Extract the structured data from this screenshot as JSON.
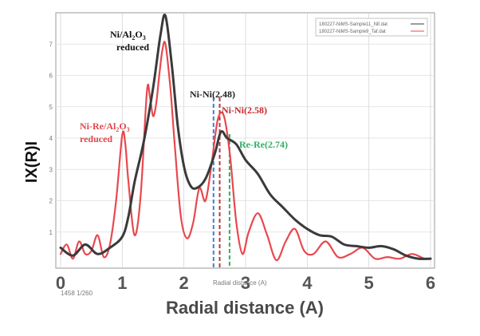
{
  "chart_data": {
    "type": "line",
    "xlabel": "Radial distance (A)",
    "xlabel_small": "Radial distance  (A)",
    "ylabel": "IX(R)I",
    "xlim": [
      0,
      6
    ],
    "ylim": [
      0,
      8.0
    ],
    "x_ticks": [
      "0",
      "1",
      "2",
      "3",
      "4",
      "5",
      "6"
    ],
    "y_ticks_small": [
      "1",
      "2",
      "3",
      "4",
      "5",
      "6",
      "7"
    ],
    "grid": true,
    "legend_position": "top-right",
    "legend": [
      "180227-NiMS-Sample11_Nif.dat",
      "180227-NiMS-Sample9_Taf.dat"
    ],
    "series": [
      {
        "name": "Ni/Al2O3 reduced",
        "color": "#3a3a3a",
        "x": [
          0.0,
          0.2,
          0.4,
          0.6,
          0.8,
          1.0,
          1.1,
          1.2,
          1.35,
          1.5,
          1.62,
          1.7,
          1.8,
          1.9,
          2.0,
          2.1,
          2.2,
          2.35,
          2.5,
          2.6,
          2.7,
          2.85,
          3.0,
          3.2,
          3.4,
          3.6,
          3.8,
          4.0,
          4.2,
          4.4,
          4.6,
          4.8,
          5.0,
          5.2,
          5.4,
          5.6,
          5.8,
          6.0
        ],
        "y": [
          0.5,
          0.25,
          0.6,
          0.3,
          0.5,
          0.85,
          1.5,
          2.6,
          3.9,
          5.6,
          7.3,
          7.9,
          6.4,
          4.4,
          3.1,
          2.5,
          2.4,
          2.7,
          3.5,
          4.2,
          4.0,
          3.8,
          3.3,
          2.85,
          2.2,
          1.8,
          1.4,
          1.1,
          0.9,
          0.85,
          0.6,
          0.55,
          0.5,
          0.55,
          0.45,
          0.25,
          0.15,
          0.15
        ]
      },
      {
        "name": "Ni-Re/Al2O3 reduced",
        "color": "#e8484e",
        "x": [
          0.0,
          0.1,
          0.2,
          0.3,
          0.4,
          0.5,
          0.6,
          0.7,
          0.8,
          0.9,
          1.0,
          1.05,
          1.1,
          1.2,
          1.3,
          1.4,
          1.45,
          1.5,
          1.55,
          1.6,
          1.65,
          1.7,
          1.78,
          1.85,
          1.95,
          2.05,
          2.15,
          2.25,
          2.35,
          2.45,
          2.55,
          2.65,
          2.75,
          2.85,
          2.95,
          3.05,
          3.2,
          3.35,
          3.5,
          3.65,
          3.8,
          3.95,
          4.1,
          4.3,
          4.5,
          4.7,
          4.9,
          5.1,
          5.3,
          5.5,
          5.7,
          5.9,
          6.0
        ],
        "y": [
          0.3,
          0.6,
          0.15,
          0.7,
          0.3,
          0.4,
          0.9,
          0.2,
          0.6,
          2.0,
          4.1,
          3.8,
          2.6,
          0.9,
          2.2,
          5.5,
          5.3,
          4.7,
          5.1,
          6.0,
          6.8,
          7.0,
          5.6,
          3.8,
          1.5,
          0.8,
          1.3,
          2.4,
          2.0,
          3.2,
          4.6,
          4.7,
          3.4,
          1.3,
          0.3,
          1.0,
          1.6,
          0.9,
          0.1,
          0.7,
          1.1,
          0.4,
          0.3,
          0.7,
          0.2,
          0.3,
          0.5,
          0.15,
          0.2,
          0.15,
          0.3,
          0.15,
          0.15
        ]
      }
    ],
    "vlines": [
      {
        "x": 2.48,
        "color": "#3f7fd6"
      },
      {
        "x": 2.58,
        "color": "#b63a3a"
      },
      {
        "x": 2.74,
        "color": "#2eb065"
      }
    ],
    "annotations": {
      "ni_al": {
        "line1": "Ni/Al",
        "sub": "2",
        "mid": "O",
        "sub2": "3",
        "line2": "reduced",
        "color": "#111111"
      },
      "ni_re": {
        "line1": "Ni-Re/Al",
        "sub": "2",
        "mid": "O",
        "sub2": "3",
        "line2": "reduced",
        "color": "#e0474c"
      },
      "nini248": {
        "text": "Ni-Ni(2.48)",
        "color": "#222222"
      },
      "nini258": {
        "text": "Ni-Ni(2.58)",
        "color": "#c8262b"
      },
      "rere274": {
        "text": "Re-Re(2.74)",
        "color": "#2eb065"
      }
    },
    "footnote_left": "1458 1/260"
  }
}
